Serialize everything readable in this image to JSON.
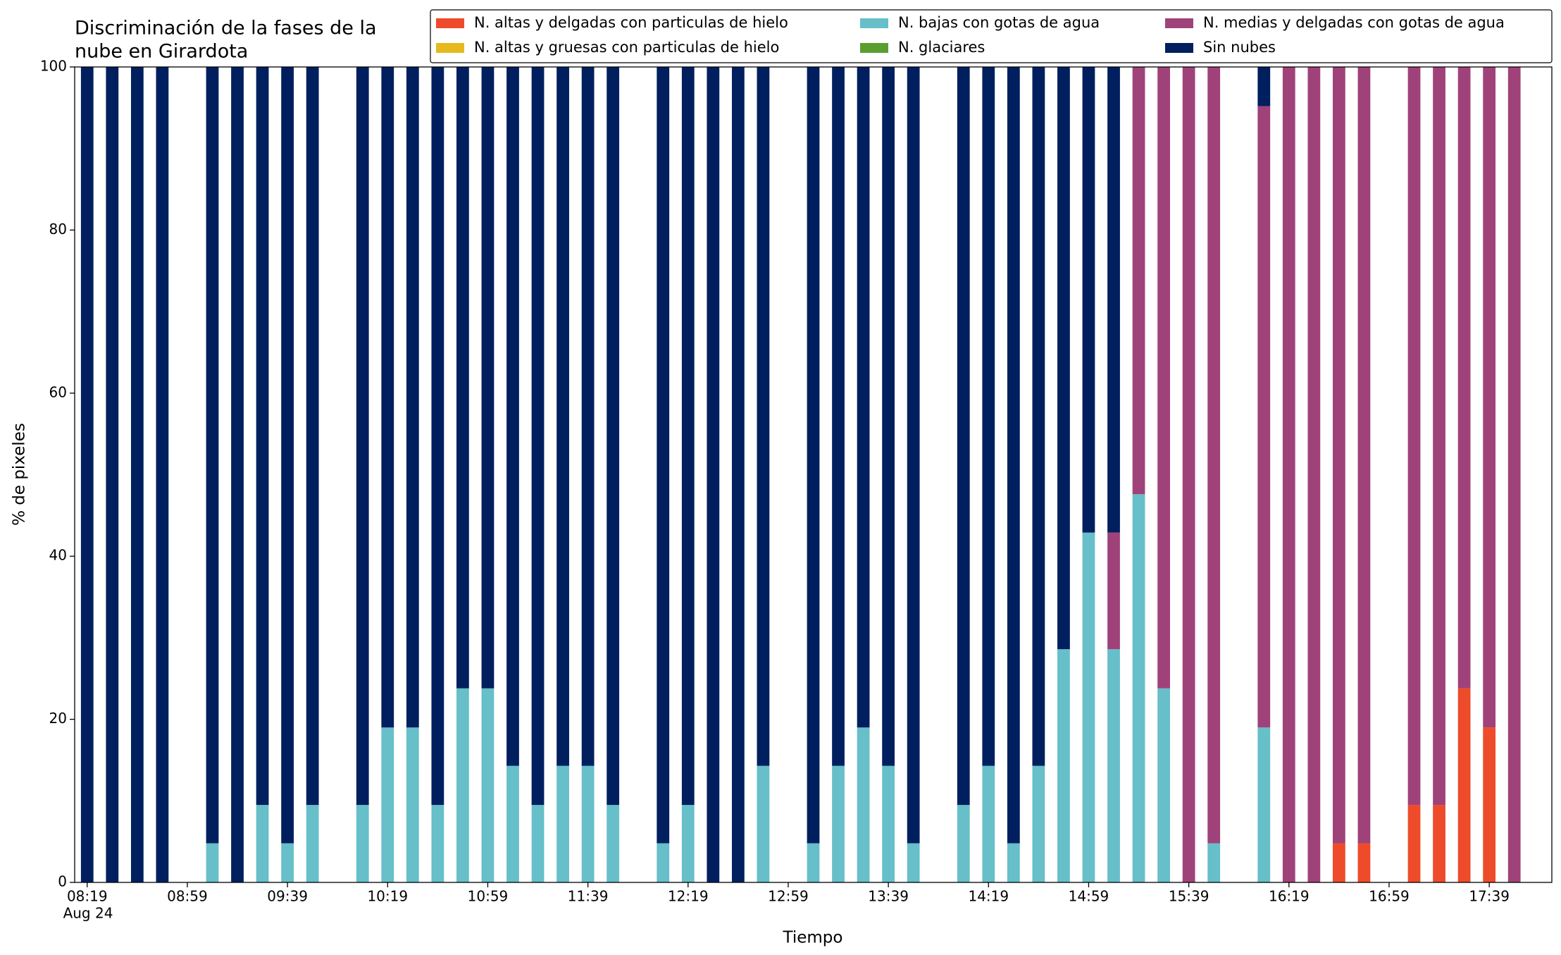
{
  "chart_data": {
    "type": "stacked_bar",
    "title": [
      "Discriminación de la fases de la",
      "nube en Girardota"
    ],
    "x_label": "Tiempo",
    "y_label": "% de pixeles",
    "x_offset_label": "Aug 24",
    "categories": [
      "08:19",
      null,
      null,
      null,
      "08:59",
      null,
      null,
      null,
      "09:39",
      null,
      null,
      null,
      "10:19",
      null,
      null,
      null,
      "10:59",
      null,
      null,
      null,
      "11:39",
      null,
      null,
      null,
      "12:19",
      null,
      null,
      null,
      "12:59",
      null,
      null,
      null,
      "13:39",
      null,
      null,
      null,
      "14:19",
      null,
      null,
      null,
      "14:59",
      null,
      null,
      null,
      "15:39",
      null,
      null,
      null,
      "16:19",
      null,
      null,
      null,
      "16:59",
      null,
      null,
      null,
      "17:39",
      null,
      null
    ],
    "series": [
      {
        "name": "N. altas y delgadas con particulas de hielo",
        "color": "#ee4b2b",
        "values": [
          0,
          0,
          0,
          0,
          0,
          0,
          0,
          0,
          0,
          0,
          0,
          0,
          0,
          0,
          0,
          0,
          0,
          0,
          0,
          0,
          0,
          0,
          0,
          0,
          0,
          0,
          0,
          0,
          0,
          0,
          0,
          0,
          0,
          0,
          0,
          0,
          0,
          0,
          0,
          0,
          0,
          0,
          0,
          0,
          0,
          0,
          0,
          0,
          0,
          0,
          4.8,
          4.8,
          0,
          9.5,
          9.5,
          23.8,
          19,
          0,
          0
        ]
      },
      {
        "name": "N. altas y gruesas con particulas de hielo",
        "color": "#e6b91e",
        "values": [
          0,
          0,
          0,
          0,
          0,
          0,
          0,
          0,
          0,
          0,
          0,
          0,
          0,
          0,
          0,
          0,
          0,
          0,
          0,
          0,
          0,
          0,
          0,
          0,
          0,
          0,
          0,
          0,
          0,
          0,
          0,
          0,
          0,
          0,
          0,
          0,
          0,
          0,
          0,
          0,
          0,
          0,
          0,
          0,
          0,
          0,
          0,
          0,
          0,
          0,
          0,
          0,
          0,
          0,
          0,
          0,
          0,
          0,
          0
        ]
      },
      {
        "name": "N. bajas con gotas de agua",
        "color": "#66bfc9",
        "values": [
          0,
          0,
          0,
          0,
          0,
          4.8,
          0,
          9.5,
          4.8,
          9.5,
          0,
          9.5,
          19,
          19,
          9.5,
          23.8,
          23.8,
          14.3,
          9.5,
          14.3,
          14.3,
          9.5,
          0,
          4.8,
          9.5,
          0,
          0,
          14.3,
          0,
          4.8,
          14.3,
          19,
          14.3,
          4.8,
          0,
          9.5,
          14.3,
          4.8,
          14.3,
          28.6,
          42.9,
          28.6,
          47.6,
          23.8,
          0,
          4.8,
          0,
          19,
          0,
          0,
          0,
          0,
          0,
          0,
          0,
          0,
          0,
          0,
          0
        ]
      },
      {
        "name": "N. glaciares",
        "color": "#5a9e2f",
        "values": [
          0,
          0,
          0,
          0,
          0,
          0,
          0,
          0,
          0,
          0,
          0,
          0,
          0,
          0,
          0,
          0,
          0,
          0,
          0,
          0,
          0,
          0,
          0,
          0,
          0,
          0,
          0,
          0,
          0,
          0,
          0,
          0,
          0,
          0,
          0,
          0,
          0,
          0,
          0,
          0,
          0,
          0,
          0,
          0,
          0,
          0,
          0,
          0,
          0,
          0,
          0,
          0,
          0,
          0,
          0,
          0,
          0,
          0,
          0
        ]
      },
      {
        "name": "N. medias y delgadas con gotas de agua",
        "color": "#a0427a",
        "values": [
          0,
          0,
          0,
          0,
          0,
          0,
          0,
          0,
          0,
          0,
          0,
          0,
          0,
          0,
          0,
          0,
          0,
          0,
          0,
          0,
          0,
          0,
          0,
          0,
          0,
          0,
          0,
          0,
          0,
          0,
          0,
          0,
          0,
          0,
          0,
          0,
          0,
          0,
          0,
          0,
          0,
          14.3,
          52.4,
          76.2,
          100,
          95.2,
          0,
          76.2,
          100,
          100,
          95.2,
          95.2,
          0,
          90.5,
          90.5,
          76.2,
          81,
          100,
          0
        ]
      },
      {
        "name": "Sin nubes",
        "color": "#001f5f",
        "values": [
          100,
          100,
          100,
          100,
          0,
          95.2,
          100,
          90.5,
          95.2,
          90.5,
          0,
          90.5,
          81,
          81,
          90.5,
          76.2,
          76.2,
          85.7,
          90.5,
          85.7,
          85.7,
          90.5,
          0,
          95.2,
          90.5,
          100,
          100,
          85.7,
          0,
          95.2,
          85.7,
          81,
          85.7,
          95.2,
          0,
          90.5,
          85.7,
          95.2,
          85.7,
          71.4,
          57.1,
          57.1,
          0,
          0,
          0,
          0,
          0,
          4.8,
          0,
          0,
          0,
          0,
          0,
          0,
          0,
          0,
          0,
          0,
          0
        ]
      }
    ],
    "ylim": [
      0,
      100
    ],
    "yticks": [
      0,
      20,
      40,
      60,
      80,
      100
    ],
    "legend": "upper right",
    "grid": false
  }
}
